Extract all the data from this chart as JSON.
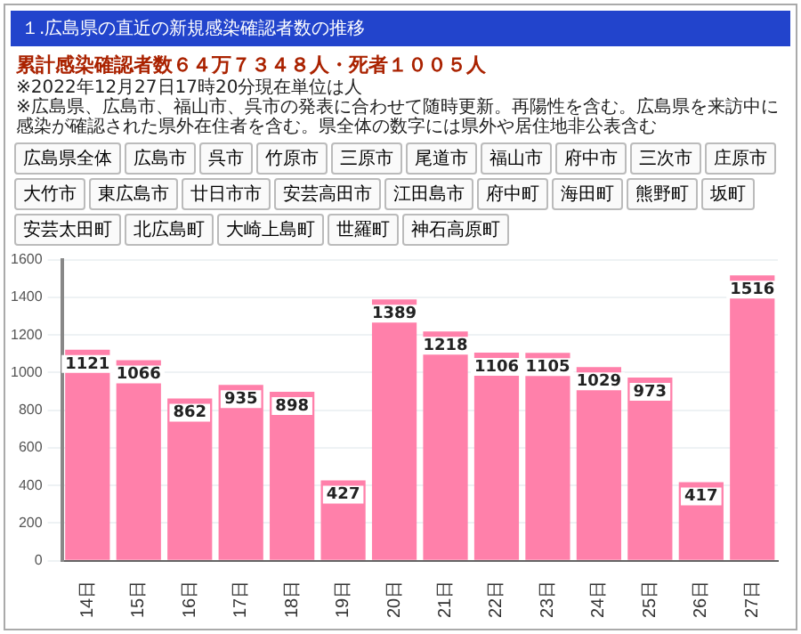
{
  "chart_data": {
    "type": "bar",
    "title": "１.広島県の直近の新規感染確認者数の推移",
    "subtitle": "累計感染確認者数６４万７３４８人・死者１００５人",
    "annotations": [
      "※2022年12月27日17時20分現在単位は人",
      "※広島県、広島市、福山市、呉市の発表に合わせて随時更新。再陽性を含む。広島県を来訪中に感染が確認された県外在住者を含む。県全体の数字には県外や居住地非公表含む",
      "広島県全体",
      "広島市",
      "呉市",
      "竹原市",
      "三原市",
      "尾道市",
      "福山市",
      "府中市",
      "三次市",
      "庄原市",
      "大竹市",
      "東広島市",
      "廿日市市",
      "安芸高田市",
      "江田島市",
      "府中町",
      "海田町",
      "熊野町",
      "坂町",
      "安芸太田町",
      "北広島町",
      "大崎上島町",
      "世羅町",
      "神石高原町"
    ],
    "categories": [
      "14日",
      "15日",
      "16日",
      "17日",
      "18日",
      "19日",
      "20日",
      "21日",
      "22日",
      "23日",
      "24日",
      "25日",
      "26日",
      "27日"
    ],
    "values": [
      1121,
      1066,
      862,
      935,
      898,
      427,
      1389,
      1218,
      1106,
      1105,
      1029,
      973,
      417,
      1516
    ],
    "color": "#ff80aa",
    "ylim": [
      0,
      1600
    ],
    "yticks": [
      0,
      200,
      400,
      600,
      800,
      1000,
      1200,
      1400,
      1600
    ],
    "grid": "y",
    "data_labels": true,
    "legend": false
  }
}
